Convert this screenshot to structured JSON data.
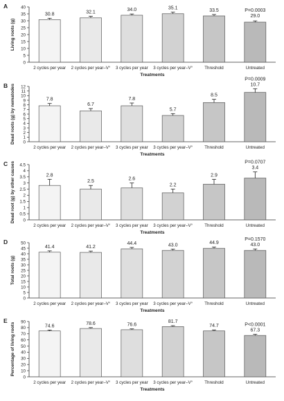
{
  "figure": {
    "colors": {
      "bar_stroke": "#555555",
      "bar_fills": [
        "#f4f4f4",
        "#e9e9e9",
        "#dedede",
        "#d2d2d2",
        "#c6c6c6",
        "#b9b9b9"
      ]
    }
  },
  "chart_data": [
    {
      "type": "bar",
      "panel": "A",
      "ylabel": "Living roots (g)",
      "xlabel": "Treatments",
      "categories": [
        "2 cycles per year",
        "2 cycles per year–V°",
        "3 cycles per year",
        "3 cycles per year–V°",
        "Threshold",
        "Untreated"
      ],
      "values": [
        30.8,
        32.1,
        34.0,
        35.1,
        33.5,
        29.0
      ],
      "value_labels": [
        "30.8",
        "32.1",
        "34.0",
        "35.1",
        "33.5",
        "29.0"
      ],
      "errors": [
        1.0,
        1.2,
        0.9,
        1.1,
        1.0,
        0.9
      ],
      "ylim": [
        0,
        40
      ],
      "yticks": [
        0,
        5,
        10,
        15,
        20,
        25,
        30,
        35,
        40
      ],
      "annotation": "P=0.0003"
    },
    {
      "type": "bar",
      "panel": "B",
      "ylabel": "Dead roots (g) by nematodes",
      "xlabel": "Treatments",
      "categories": [
        "2 cycles per year",
        "2 cycles per year–V°",
        "3 cycles per year",
        "3 cycles per year–V°",
        "Threshold",
        "Untreated"
      ],
      "values": [
        7.8,
        6.7,
        7.8,
        5.7,
        8.5,
        10.7
      ],
      "value_labels": [
        "7.8",
        "6.7",
        "7.8",
        "5.7",
        "8.5",
        "10.7"
      ],
      "errors": [
        0.5,
        0.5,
        0.6,
        0.4,
        0.7,
        0.8
      ],
      "ylim": [
        0,
        12
      ],
      "yticks": [
        0,
        1,
        2,
        3,
        4,
        5,
        6,
        7,
        8,
        9,
        10,
        11,
        12
      ],
      "annotation": "P=0.0009"
    },
    {
      "type": "bar",
      "panel": "C",
      "ylabel": "Dead root (g) by other causes",
      "xlabel": "Treatments",
      "categories": [
        "2 cycles per year",
        "2 cycles per year–V°",
        "3 cycles per year",
        "3 cycles per year–V°",
        "Threshold",
        "Untreated"
      ],
      "values": [
        2.8,
        2.5,
        2.6,
        2.2,
        2.9,
        3.4
      ],
      "value_labels": [
        "2.8",
        "2.5",
        "2.6",
        "2.2",
        "2.9",
        "3.4"
      ],
      "errors": [
        0.5,
        0.3,
        0.4,
        0.3,
        0.4,
        0.5
      ],
      "ylim": [
        0,
        4.5
      ],
      "yticks": [
        0,
        0.5,
        1,
        1.5,
        2,
        2.5,
        3,
        3.5,
        4,
        4.5
      ],
      "ytick_labels": [
        "0",
        "0.5",
        "1",
        "1.5",
        "2",
        "2.5",
        "3",
        "3.5",
        "4",
        "4.5"
      ],
      "annotation": "P=0.0707"
    },
    {
      "type": "bar",
      "panel": "D",
      "ylabel": "Total roots (g)",
      "xlabel": "Treatments",
      "categories": [
        "2 cycles per year",
        "2 cycles per year–V°",
        "3 cycles per year",
        "3 cycles per year–V°",
        "Threshold",
        "Untreated"
      ],
      "values": [
        41.4,
        41.2,
        44.4,
        43.0,
        44.9,
        43.0
      ],
      "value_labels": [
        "41.4",
        "41.2",
        "44.4",
        "43.0",
        "44.9",
        "43.0"
      ],
      "errors": [
        1.2,
        1.2,
        1.3,
        1.2,
        1.2,
        1.3
      ],
      "ylim": [
        0,
        50
      ],
      "yticks": [
        0,
        5,
        10,
        15,
        20,
        25,
        30,
        35,
        40,
        45,
        50
      ],
      "annotation": "P=0.1570"
    },
    {
      "type": "bar",
      "panel": "E",
      "ylabel": "Percentage of living roots",
      "xlabel": "Treatments",
      "categories": [
        "2 cycles per year",
        "2 cycles per year–V°",
        "3 cycles per year",
        "3 cycles per year–V°",
        "Threshold",
        "Untreated"
      ],
      "values": [
        74.6,
        78.6,
        76.6,
        81.7,
        74.7,
        67.3
      ],
      "value_labels": [
        "74.6",
        "78.6",
        "76.6",
        "81.7",
        "74.7",
        "67.3"
      ],
      "errors": [
        1.5,
        1.5,
        1.4,
        1.5,
        1.6,
        1.8
      ],
      "ylim": [
        0,
        90
      ],
      "yticks": [
        0,
        10,
        20,
        30,
        40,
        50,
        60,
        70,
        80,
        90
      ],
      "annotation": "P<0.0001"
    }
  ]
}
